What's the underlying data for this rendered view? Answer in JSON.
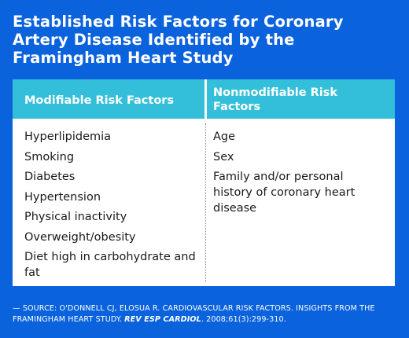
{
  "title": "Established Risk Factors for Coronary Artery Disease Identified by the Framingham Heart Study",
  "table": {
    "headers": [
      "Modifiable Risk Factors",
      "Nonmodifiable Risk Factors"
    ],
    "modifiable": [
      "Hyperlipidemia",
      "Smoking",
      "Diabetes",
      "Hypertension",
      "Physical inactivity",
      "Overweight/obesity",
      "Diet high in carbohydrate and fat"
    ],
    "nonmodifiable": [
      "Age",
      "Sex",
      "Family and/or personal history of coronary heart disease"
    ]
  },
  "source": {
    "prefix": "— SOURCE: O'DONNELL CJ, ELOSUA R. CARDIOVASCULAR RISK FACTORS. INSIGHTS FROM THE FRAMINGHAM HEART STUDY. ",
    "journal": "REV ESP CARDIOL",
    "suffix": ". 2008;61(3):299-310."
  },
  "colors": {
    "background": "#0a62dc",
    "header": "#33bfd9",
    "panel": "#ffffff",
    "text": "#1a1a1a"
  }
}
